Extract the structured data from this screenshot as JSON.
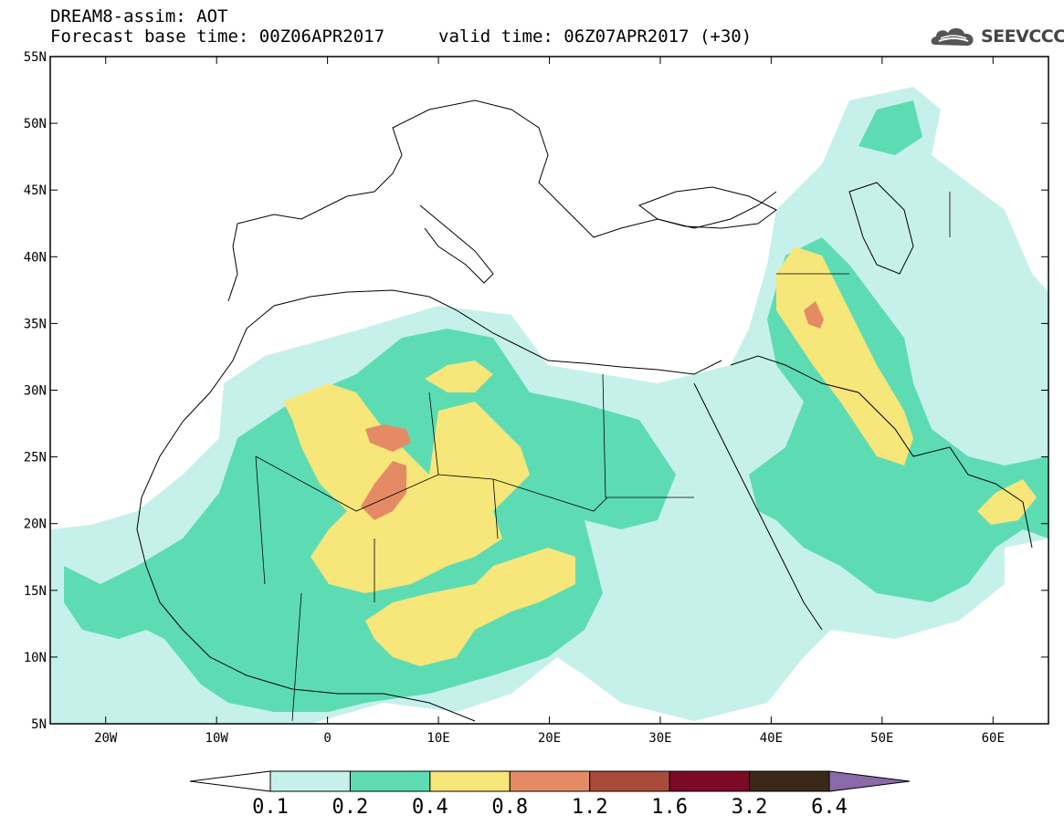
{
  "header": {
    "model_title": "DREAM8-assim: AOT",
    "base_time": "Forecast base time: 00Z06APR2017",
    "valid_time": "valid time: 06Z07APR2017 (+30)"
  },
  "logo": {
    "text": "SEEVCCC",
    "icon": "cloud-logo-icon"
  },
  "map": {
    "lon_range": [
      -25,
      65
    ],
    "lat_range": [
      5,
      55
    ],
    "lat_ticks": [
      "5N",
      "10N",
      "15N",
      "20N",
      "25N",
      "30N",
      "35N",
      "40N",
      "45N",
      "50N",
      "55N"
    ],
    "lon_ticks": [
      "20W",
      "10W",
      "0",
      "10E",
      "20E",
      "30E",
      "40E",
      "50E",
      "60E"
    ]
  },
  "colorbar": {
    "labels": [
      "0.1",
      "0.2",
      "0.4",
      "0.8",
      "1.2",
      "1.6",
      "3.2",
      "6.4"
    ],
    "colors": [
      "#ffffff",
      "#c6f1ea",
      "#5ddcb4",
      "#f7e67a",
      "#e48b65",
      "#a84b3b",
      "#7b0a27",
      "#3b2917",
      "#8a6aa8"
    ]
  },
  "legend_colors": {
    "c1": "#c6f1ea",
    "c2": "#5ddcb4",
    "c3": "#f7e67a",
    "c4": "#e48b65"
  }
}
